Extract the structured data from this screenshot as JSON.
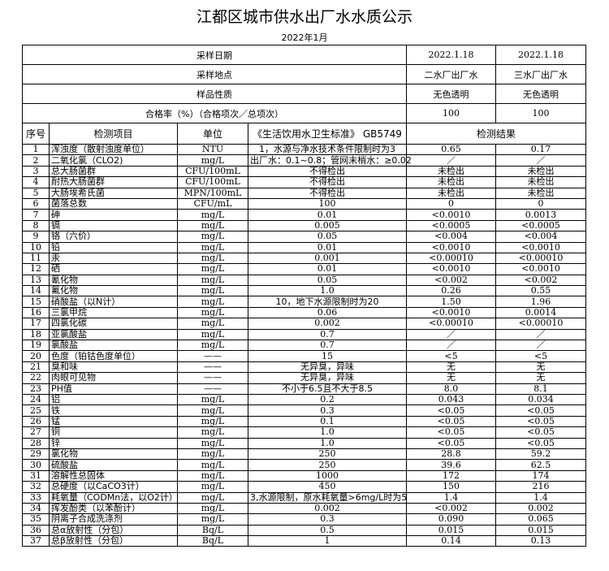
{
  "title": "江都区城市供水出厂水水质公示",
  "date": "2022年1月",
  "header_rows": [
    {
      "label": "采样日期",
      "r1": "2022.1.18",
      "r2": "2022.1.18"
    },
    {
      "label": "采样地点",
      "r1": "二水厂出厂水",
      "r2": "三水厂出厂水"
    },
    {
      "label": "样品性质",
      "r1": "无色透明",
      "r2": "无色透明"
    },
    {
      "label": "合格率（%）（合格项次／总项次）",
      "r1": "100",
      "r2": "100"
    }
  ],
  "columns": {
    "no": "序号",
    "item": "检测项目",
    "unit": "单位",
    "standard": "《生活饮用水卫生标准》 GB5749",
    "result": "检测结果"
  },
  "rows": [
    [
      "1",
      "浑浊度（散射浊度单位）",
      "NTU",
      "1，水源与净水技术条件限制时为3",
      "0.65",
      "0.17"
    ],
    [
      "2",
      "二氧化氯（CLO2)",
      "mg/L",
      "出厂水：0.1~0.8；管网末梢水：≥0.02",
      "／",
      "／"
    ],
    [
      "3",
      "总大肠菌群",
      "CFU/100mL",
      "不得检出",
      "未检出",
      "未检出"
    ],
    [
      "4",
      "耐热大肠菌群",
      "CFU/100mL",
      "不得检出",
      "未检出",
      "未检出"
    ],
    [
      "5",
      "大肠埃希氏菌",
      "MPN/100mL",
      "不得检出",
      "未检出",
      "未检出"
    ],
    [
      "6",
      "菌落总数",
      "CFU/mL",
      "100",
      "0",
      "0"
    ],
    [
      "7",
      "砷",
      "mg/L",
      "0.01",
      "<0.0010",
      "0.0013"
    ],
    [
      "8",
      "镉",
      "mg/L",
      "0.005",
      "<0.0005",
      "<0.0005"
    ],
    [
      "9",
      "铬（六价）",
      "mg/L",
      "0.05",
      "<0.004",
      "<0.004"
    ],
    [
      "10",
      "铅",
      "mg/L",
      "0.01",
      "<0.0010",
      "<0.0010"
    ],
    [
      "11",
      "汞",
      "mg/L",
      "0.001",
      "<0.00010",
      "<0.00010"
    ],
    [
      "12",
      "硒",
      "mg/L",
      "0.01",
      "<0.0010",
      "<0.0010"
    ],
    [
      "13",
      "氰化物",
      "mg/L",
      "0.05",
      "<0.002",
      "<0.002"
    ],
    [
      "14",
      "氟化物",
      "mg/L",
      "1.0",
      "0.26",
      "0.55"
    ],
    [
      "15",
      "硝酸盐（以N计）",
      "mg/L",
      "10，地下水源限制时为20",
      "1.50",
      "1.96"
    ],
    [
      "16",
      "三氯甲烷",
      "mg/L",
      "0.06",
      "<0.0010",
      "0.0014"
    ],
    [
      "17",
      "四氯化碳",
      "mg/L",
      "0.002",
      "<0.00010",
      "<0.00010"
    ],
    [
      "18",
      "亚氯酸盐",
      "mg/L",
      "0.7",
      "／",
      "／"
    ],
    [
      "19",
      "氯酸盐",
      "mg/L",
      "0.7",
      "／",
      "／"
    ],
    [
      "20",
      "色度（铂钴色度单位）",
      "——",
      "15",
      "<5",
      "<5"
    ],
    [
      "21",
      "臭和味",
      "——",
      "无异臭，异味",
      "无",
      "无"
    ],
    [
      "22",
      "肉眼可见物",
      "——",
      "无异臭，异味",
      "无",
      "无"
    ],
    [
      "23",
      "PH值",
      "——",
      "不小于6.5且不大于8.5",
      "8.0",
      "8.1"
    ],
    [
      "24",
      "铝",
      "mg/L",
      "0.2",
      "0.043",
      "0.034"
    ],
    [
      "25",
      "铁",
      "mg/L",
      "0.3",
      "<0.05",
      "<0.05"
    ],
    [
      "26",
      "锰",
      "mg/L",
      "0.1",
      "<0.05",
      "<0.05"
    ],
    [
      "27",
      "铜",
      "mg/L",
      "1.0",
      "<0.05",
      "<0.05"
    ],
    [
      "28",
      "锌",
      "mg/L",
      "1.0",
      "<0.05",
      "<0.05"
    ],
    [
      "29",
      "氯化物",
      "mg/L",
      "250",
      "28.8",
      "59.2"
    ],
    [
      "30",
      "硫酸盐",
      "mg/L",
      "250",
      "39.6",
      "62.5"
    ],
    [
      "31",
      "溶解性总固体",
      "mg/L",
      "1000",
      "172",
      "174"
    ],
    [
      "32",
      "总硬度（以CaCO3计）",
      "mg/L",
      "450",
      "150",
      "216"
    ],
    [
      "33",
      "耗氧量（CODMn法，以O2计）",
      "mg/L",
      "3,水源限制，原水耗氧量>6mg/L时为5",
      "1.4",
      "1.4"
    ],
    [
      "34",
      "挥发酚类（以苯酚计）",
      "mg/L",
      "0.002",
      "<0.002",
      "0.002"
    ],
    [
      "35",
      "阴离子合成洗涤剂",
      "mg/L",
      "0.3",
      "0.090",
      "0.065"
    ],
    [
      "36",
      "总α放射性（分包）",
      "Bq/L",
      "0.5",
      "0.015",
      "0.015"
    ],
    [
      "37",
      "总β放射性（分包）",
      "Bq/L",
      "1",
      "0.14",
      "0.13"
    ]
  ]
}
